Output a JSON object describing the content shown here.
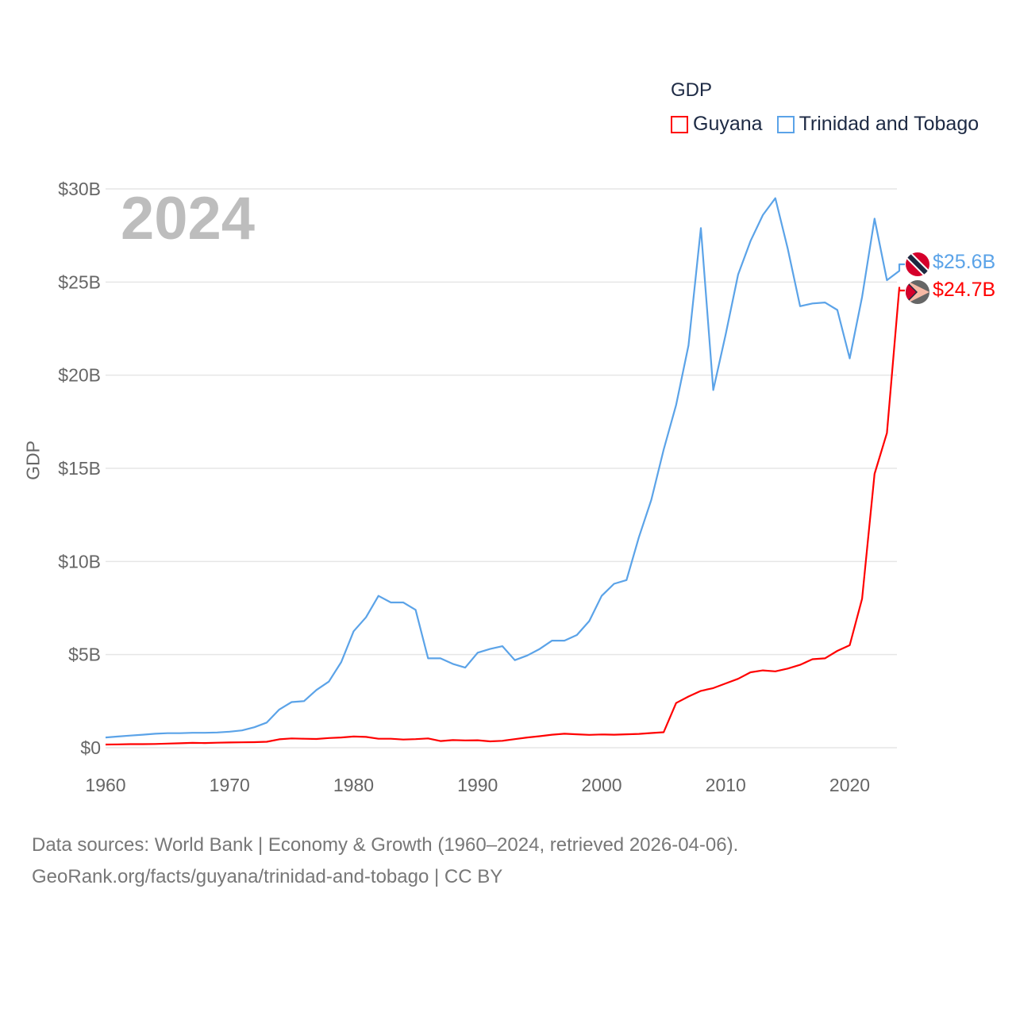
{
  "legend": {
    "title": "GDP",
    "items": [
      {
        "label": "Guyana",
        "color": "#ff0000"
      },
      {
        "label": "Trinidad and Tobago",
        "color": "#5ba3e8"
      }
    ]
  },
  "year_label": "2024",
  "end_labels": {
    "trinidad": "$25.6B",
    "guyana": "$24.7B"
  },
  "footer": {
    "line1": "Data sources: World Bank | Economy & Growth (1960–2024, retrieved 2026-04-06).",
    "line2": "GeoRank.org/facts/guyana/trinidad-and-tobago | CC BY"
  },
  "chart_data": {
    "type": "line",
    "title": "GDP",
    "xlabel": "",
    "ylabel": "GDP",
    "xlim": [
      1960,
      2024
    ],
    "ylim": [
      0,
      30
    ],
    "units": "billion USD",
    "grid": true,
    "legend_position": "top-right",
    "x_ticks": [
      1960,
      1970,
      1980,
      1990,
      2000,
      2010,
      2020
    ],
    "x_tick_labels": [
      "1960",
      "1970",
      "1980",
      "1990",
      "2000",
      "2010",
      "2020"
    ],
    "y_ticks": [
      0,
      5,
      10,
      15,
      20,
      25,
      30
    ],
    "y_tick_labels": [
      "$0",
      "$5B",
      "$10B",
      "$15B",
      "$20B",
      "$25B",
      "$30B"
    ],
    "x": [
      1960,
      1961,
      1962,
      1963,
      1964,
      1965,
      1966,
      1967,
      1968,
      1969,
      1970,
      1971,
      1972,
      1973,
      1974,
      1975,
      1976,
      1977,
      1978,
      1979,
      1980,
      1981,
      1982,
      1983,
      1984,
      1985,
      1986,
      1987,
      1988,
      1989,
      1990,
      1991,
      1992,
      1993,
      1994,
      1995,
      1996,
      1997,
      1998,
      1999,
      2000,
      2001,
      2002,
      2003,
      2004,
      2005,
      2006,
      2007,
      2008,
      2009,
      2010,
      2011,
      2012,
      2013,
      2014,
      2015,
      2016,
      2017,
      2018,
      2019,
      2020,
      2021,
      2022,
      2023,
      2024
    ],
    "series": [
      {
        "name": "Guyana",
        "color": "#ff0000",
        "values": [
          0.17,
          0.18,
          0.19,
          0.19,
          0.2,
          0.22,
          0.24,
          0.26,
          0.25,
          0.27,
          0.28,
          0.29,
          0.3,
          0.32,
          0.45,
          0.5,
          0.48,
          0.47,
          0.52,
          0.55,
          0.6,
          0.58,
          0.48,
          0.48,
          0.44,
          0.46,
          0.5,
          0.36,
          0.41,
          0.39,
          0.4,
          0.34,
          0.37,
          0.46,
          0.55,
          0.62,
          0.7,
          0.75,
          0.72,
          0.69,
          0.71,
          0.7,
          0.72,
          0.74,
          0.79,
          0.83,
          2.4,
          2.75,
          3.05,
          3.2,
          3.45,
          3.7,
          4.05,
          4.15,
          4.1,
          4.25,
          4.45,
          4.75,
          4.8,
          5.2,
          5.5,
          8.0,
          14.7,
          16.9,
          24.7
        ]
      },
      {
        "name": "Trinidad and Tobago",
        "color": "#5ba3e8",
        "values": [
          0.55,
          0.6,
          0.65,
          0.7,
          0.75,
          0.78,
          0.78,
          0.8,
          0.8,
          0.82,
          0.86,
          0.93,
          1.1,
          1.35,
          2.05,
          2.45,
          2.5,
          3.1,
          3.55,
          4.6,
          6.25,
          7.0,
          8.15,
          7.8,
          7.8,
          7.4,
          4.8,
          4.8,
          4.5,
          4.3,
          5.1,
          5.3,
          5.45,
          4.7,
          4.95,
          5.3,
          5.75,
          5.75,
          6.05,
          6.8,
          8.15,
          8.8,
          9.0,
          11.3,
          13.3,
          16.0,
          18.4,
          21.6,
          27.9,
          19.2,
          22.2,
          25.4,
          27.2,
          28.6,
          29.5,
          26.8,
          23.7,
          23.85,
          23.9,
          23.5,
          20.9,
          24.2,
          28.4,
          25.1,
          25.6
        ]
      }
    ]
  }
}
